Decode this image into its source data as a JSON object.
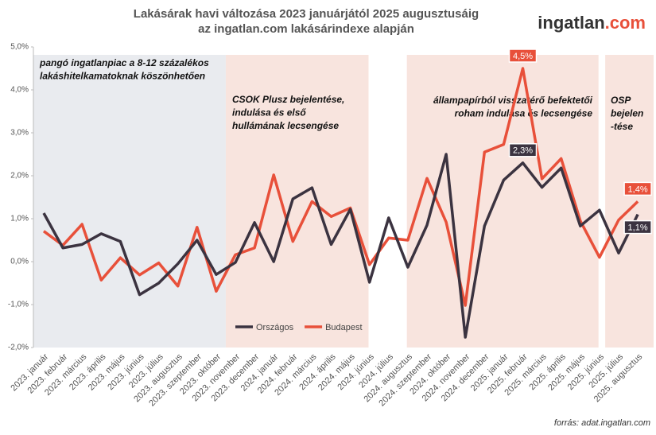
{
  "chart_data": {
    "type": "line",
    "title": [
      "Lakásárak havi változása 2023 januárjától 2025 augusztusáig",
      "az ingatlan.com lakásárindexe alapján"
    ],
    "logo": {
      "name": "ingatlan",
      "suffix": ".com"
    },
    "source": "forrás: adat.ingatlan.com",
    "categories": [
      "2023. január",
      "2023. február",
      "2023. március",
      "2023. április",
      "2023. május",
      "2023. június",
      "2023. július",
      "2023. augusztus",
      "2023. szeptember",
      "2023. október",
      "2023. november",
      "2023. december",
      "2024. január",
      "2024. február",
      "2024. március",
      "2024. április",
      "2024. május",
      "2024. június",
      "2024. július",
      "2024. augusztus",
      "2024. szeptember",
      "2024. október",
      "2024. november",
      "2024. december",
      "2025. január",
      "2025. február",
      "2025. március",
      "2025. április",
      "2025. május",
      "2025. június",
      "2025. július",
      "2025. augusztus"
    ],
    "series": [
      {
        "name": "Országos",
        "color": "#3b3340",
        "values": [
          1.13,
          0.32,
          0.4,
          0.65,
          0.47,
          -0.77,
          -0.5,
          -0.05,
          0.5,
          -0.3,
          -0.02,
          0.91,
          0.0,
          1.46,
          1.72,
          0.4,
          1.22,
          -0.48,
          1.02,
          -0.13,
          0.85,
          2.5,
          -1.76,
          0.83,
          1.9,
          2.3,
          1.73,
          2.18,
          0.83,
          1.2,
          0.2,
          1.1
        ],
        "value_labels": [
          null,
          null,
          null,
          null,
          null,
          null,
          null,
          null,
          null,
          null,
          null,
          null,
          null,
          null,
          null,
          null,
          null,
          null,
          null,
          null,
          null,
          null,
          null,
          null,
          null,
          "2,3%",
          null,
          null,
          null,
          null,
          null,
          "1,1%"
        ]
      },
      {
        "name": "Budapest",
        "color": "#e8503a",
        "values": [
          0.71,
          0.38,
          0.87,
          -0.43,
          0.09,
          -0.31,
          -0.03,
          -0.57,
          0.8,
          -0.69,
          0.16,
          0.32,
          2.02,
          0.47,
          1.4,
          1.05,
          1.25,
          -0.07,
          0.55,
          0.5,
          1.94,
          0.92,
          -1.02,
          2.55,
          2.73,
          4.5,
          1.93,
          2.4,
          0.95,
          0.1,
          0.97,
          1.4
        ],
        "value_labels": [
          null,
          null,
          null,
          null,
          null,
          null,
          null,
          null,
          null,
          null,
          null,
          null,
          null,
          null,
          null,
          null,
          null,
          null,
          null,
          null,
          null,
          null,
          null,
          null,
          null,
          "4,5%",
          null,
          null,
          null,
          null,
          null,
          "1,4%"
        ]
      }
    ],
    "ylim": [
      -2,
      5
    ],
    "yticks": [
      {
        "value": -2,
        "label": "-2,0%"
      },
      {
        "value": -1,
        "label": "-1,0%"
      },
      {
        "value": 0,
        "label": "0,0%"
      },
      {
        "value": 1,
        "label": "1,0%"
      },
      {
        "value": 2,
        "label": "2,0%"
      },
      {
        "value": 3,
        "label": "3,0%"
      },
      {
        "value": 4,
        "label": "4,0%"
      },
      {
        "value": 5,
        "label": "5,0%"
      }
    ],
    "annotations": [
      {
        "lines": [
          "pangó ingatlanpiac a 8-12 százalékos",
          "lakáshitelkamatoknak köszönhetően"
        ]
      },
      {
        "lines": [
          "CSOK Plusz bejelentése,",
          "indulása és első",
          "hullámának lecsengése"
        ]
      },
      {
        "lines": [
          "állampapírból visszatérő befektetői",
          "roham indulása és lecsengése"
        ]
      },
      {
        "lines": [
          "OSP",
          "bejelen",
          "-tése"
        ]
      }
    ],
    "legend": "bottom-center"
  }
}
